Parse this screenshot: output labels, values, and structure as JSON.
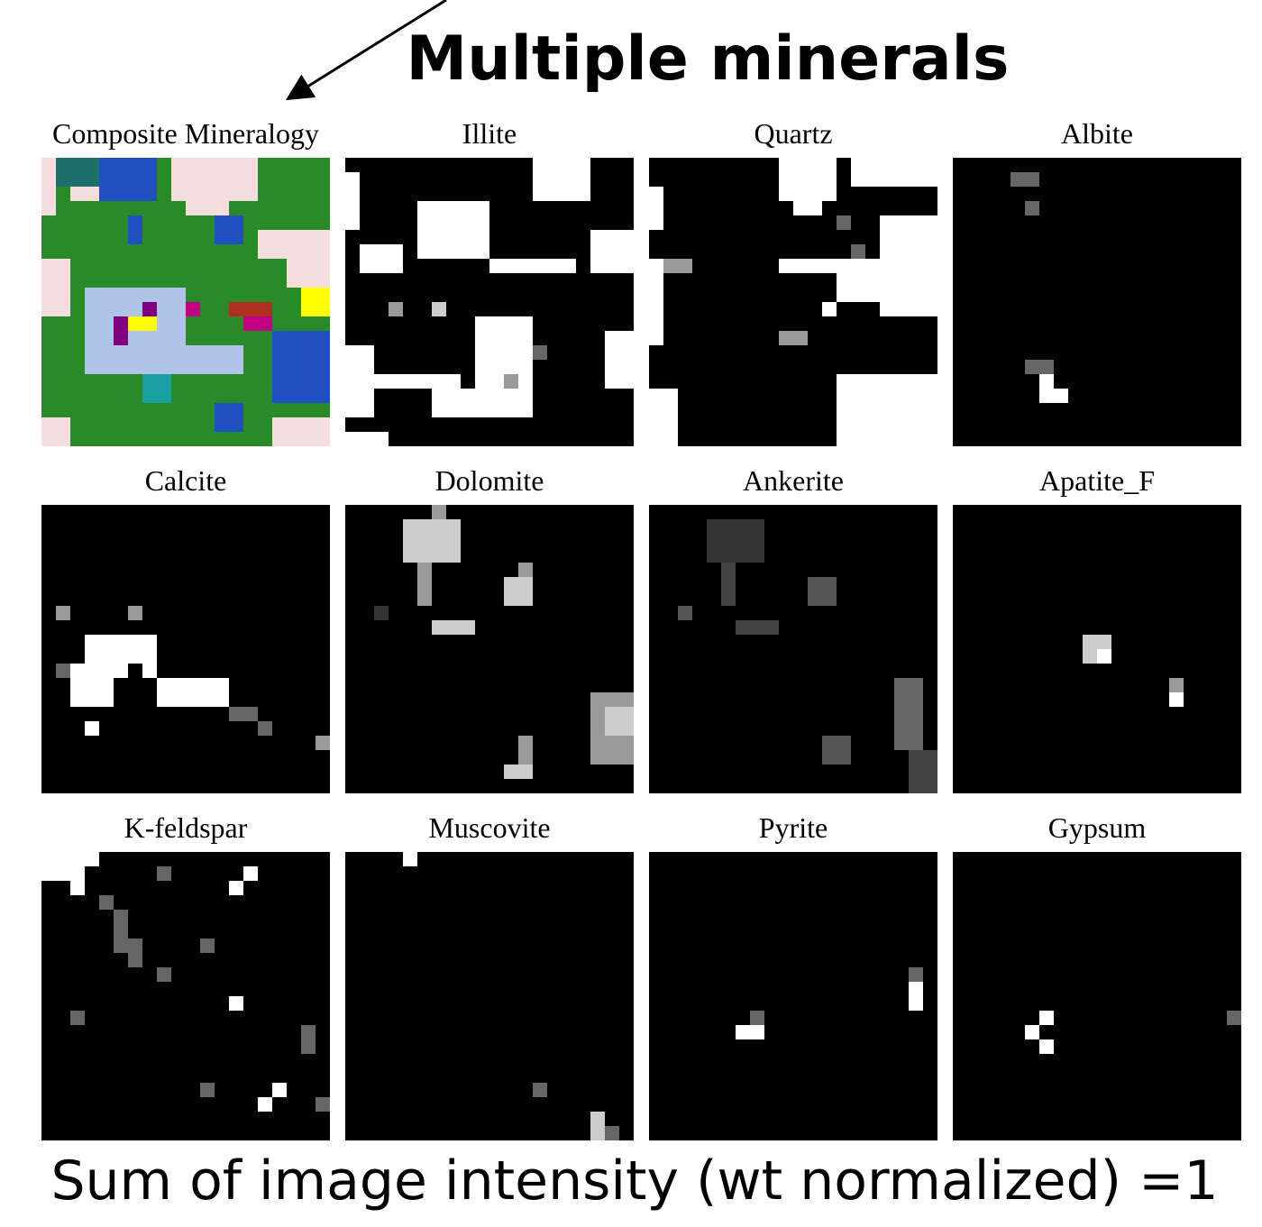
{
  "header": {
    "title": "Multiple minerals"
  },
  "panels": [
    {
      "label": "Composite Mineralogy"
    },
    {
      "label": "Illite"
    },
    {
      "label": "Quartz"
    },
    {
      "label": "Albite"
    },
    {
      "label": "Calcite"
    },
    {
      "label": "Dolomite"
    },
    {
      "label": "Ankerite"
    },
    {
      "label": "Apatite_F"
    },
    {
      "label": "K-feldspar"
    },
    {
      "label": "Muscovite"
    },
    {
      "label": "Pyrite"
    },
    {
      "label": "Gypsum"
    }
  ],
  "footer": {
    "text": "Sum of image intensity (wt normalized) =1"
  }
}
